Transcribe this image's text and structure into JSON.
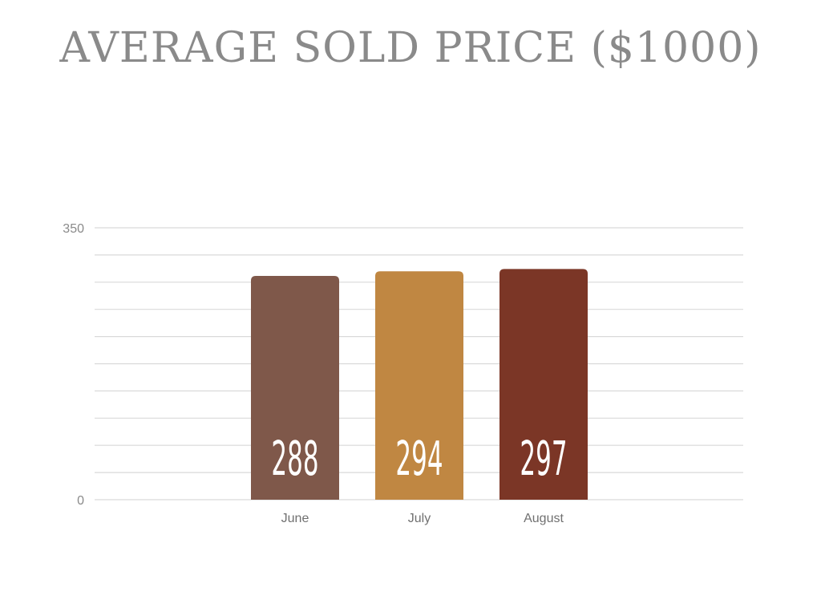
{
  "chart_data": {
    "type": "bar",
    "title": "AVERAGE SOLD PRICE ($1000)",
    "categories": [
      "June",
      "July",
      "August"
    ],
    "values": [
      288,
      294,
      297
    ],
    "data_labels": [
      "288",
      "294",
      "297"
    ],
    "colors": [
      "#7f584a",
      "#c08742",
      "#7b3626"
    ],
    "ylim": [
      0,
      350
    ],
    "ytick_labels": [
      "0",
      "350"
    ],
    "grid": true,
    "legend": false
  }
}
